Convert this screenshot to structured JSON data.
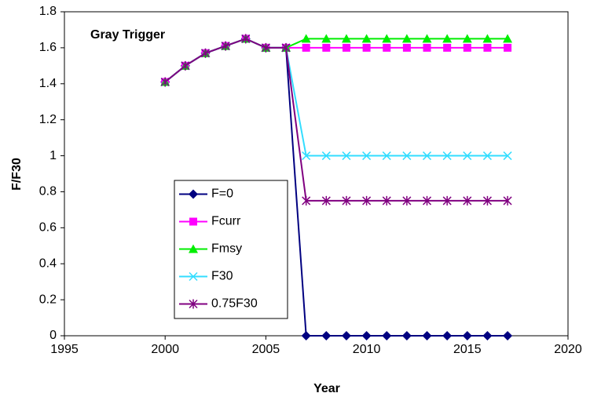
{
  "chart_data": {
    "type": "line",
    "annotation": "Gray Trigger",
    "x_label": "Year",
    "y_label": "F/F30",
    "x": [
      2000,
      2001,
      2002,
      2003,
      2004,
      2005,
      2006,
      2007,
      2008,
      2009,
      2010,
      2011,
      2012,
      2013,
      2014,
      2015,
      2016,
      2017
    ],
    "series": [
      {
        "name": "F=0",
        "color": "#000080",
        "marker": "diamond",
        "values": [
          1.41,
          1.5,
          1.57,
          1.61,
          1.65,
          1.6,
          1.6,
          0,
          0,
          0,
          0,
          0,
          0,
          0,
          0,
          0,
          0,
          0
        ]
      },
      {
        "name": "Fcurr",
        "color": "#ff00ff",
        "marker": "square",
        "values": [
          1.41,
          1.5,
          1.57,
          1.61,
          1.65,
          1.6,
          1.6,
          1.6,
          1.6,
          1.6,
          1.6,
          1.6,
          1.6,
          1.6,
          1.6,
          1.6,
          1.6,
          1.6
        ]
      },
      {
        "name": "Fmsy",
        "color": "#00ee00",
        "marker": "triangle",
        "values": [
          1.41,
          1.5,
          1.57,
          1.61,
          1.65,
          1.6,
          1.6,
          1.65,
          1.65,
          1.65,
          1.65,
          1.65,
          1.65,
          1.65,
          1.65,
          1.65,
          1.65,
          1.65
        ]
      },
      {
        "name": "F30",
        "color": "#33ddff",
        "marker": "x",
        "values": [
          1.41,
          1.5,
          1.57,
          1.61,
          1.65,
          1.6,
          1.6,
          1.0,
          1.0,
          1.0,
          1.0,
          1.0,
          1.0,
          1.0,
          1.0,
          1.0,
          1.0,
          1.0
        ]
      },
      {
        "name": "0.75F30",
        "color": "#800080",
        "marker": "star",
        "values": [
          1.41,
          1.5,
          1.57,
          1.61,
          1.65,
          1.6,
          1.6,
          0.75,
          0.75,
          0.75,
          0.75,
          0.75,
          0.75,
          0.75,
          0.75,
          0.75,
          0.75,
          0.75
        ]
      }
    ],
    "xlim": [
      1995,
      2020
    ],
    "xticks": [
      1995,
      2000,
      2005,
      2010,
      2015,
      2020
    ],
    "ylim": [
      0,
      1.8
    ],
    "yticks": [
      0,
      0.2,
      0.4,
      0.6,
      0.8,
      1,
      1.2,
      1.4,
      1.6,
      1.8
    ],
    "grid": false,
    "legend": "lower-left"
  }
}
